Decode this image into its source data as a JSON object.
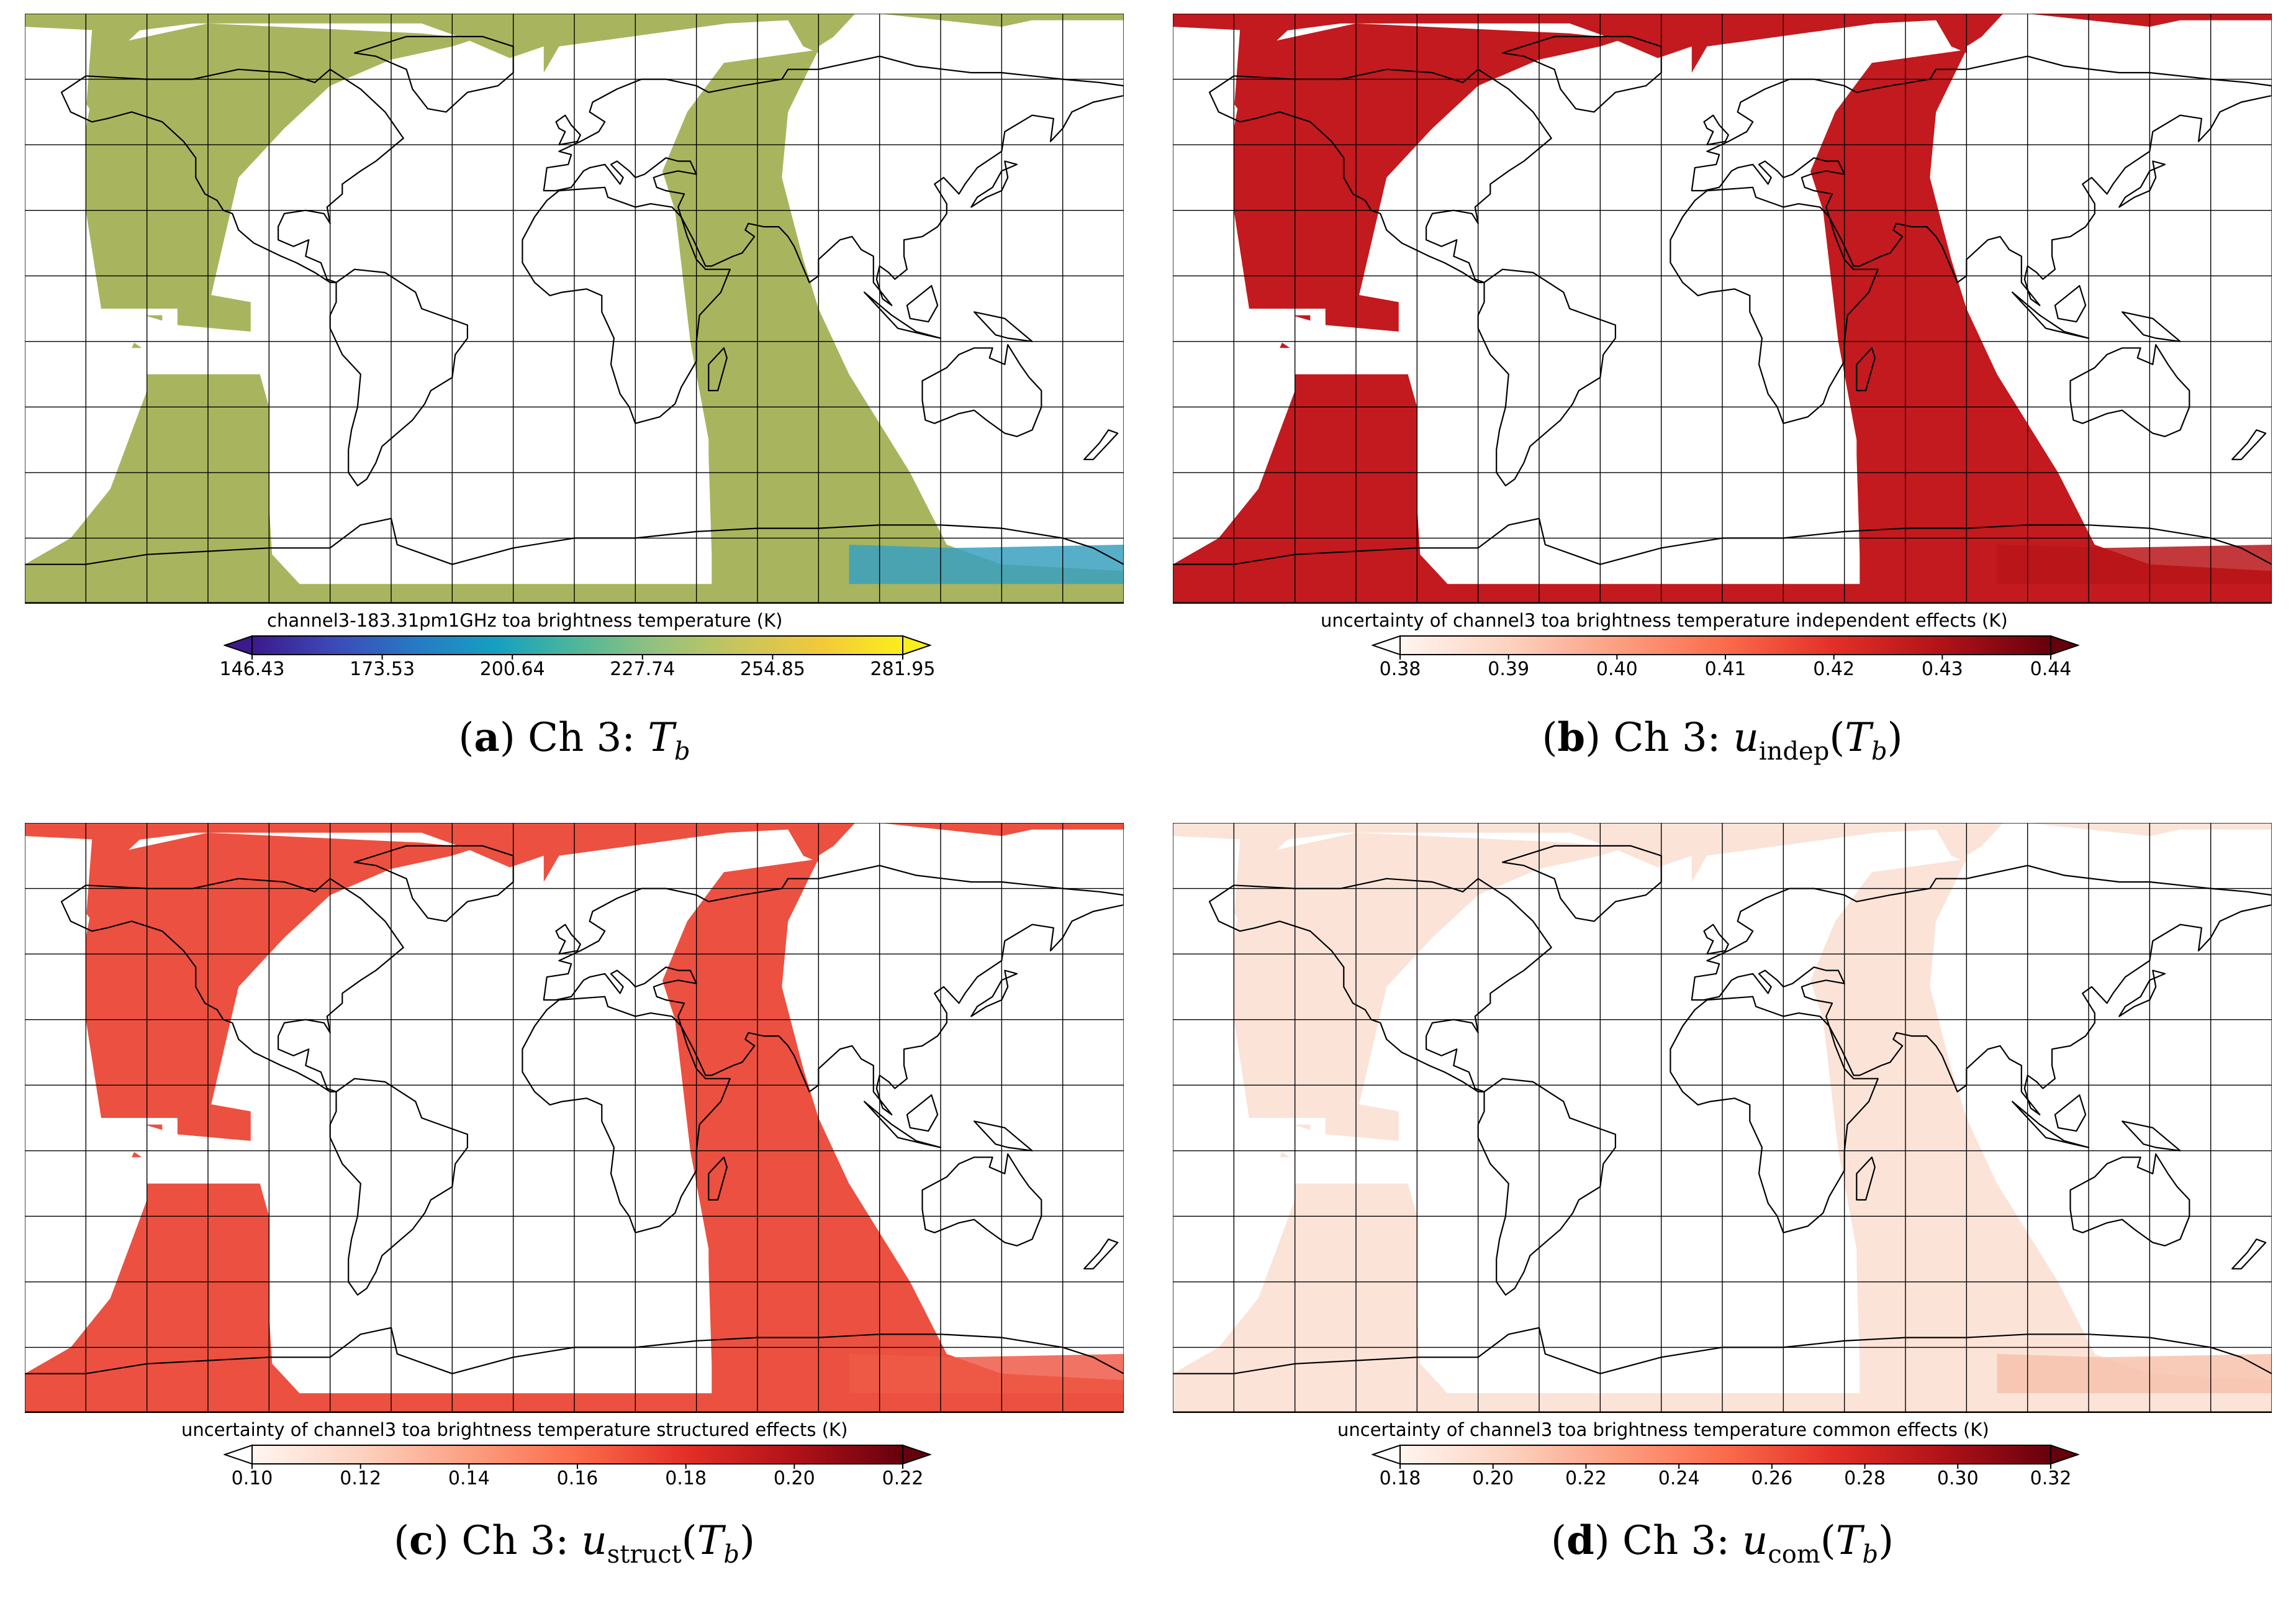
{
  "panels": [
    {
      "id": "a",
      "colorbar": {
        "title": "channel3-183.31pm1GHz toa brightness temperature (K)",
        "ticks": [
          "146.43",
          "173.53",
          "200.64",
          "227.74",
          "254.85",
          "281.95"
        ],
        "colors": [
          "#3b1a8c",
          "#3d49b8",
          "#2779c4",
          "#15a0c0",
          "#4fb79a",
          "#96c27d",
          "#c9c55c",
          "#f2c93a",
          "#fcee1c"
        ],
        "under_color": "#3b1a8c",
        "over_color": "#fcee1c"
      },
      "swath_fill": "#a8b55e",
      "south_fill": "#3aa0c0",
      "caption": {
        "letter": "a",
        "prefix": "Ch 3: ",
        "var": "T",
        "sub": "b",
        "func": ""
      }
    },
    {
      "id": "b",
      "colorbar": {
        "title": "uncertainty of channel3 toa brightness temperature independent effects (K)",
        "ticks": [
          "0.38",
          "0.39",
          "0.40",
          "0.41",
          "0.42",
          "0.43",
          "0.44"
        ],
        "colors": [
          "#fff5f0",
          "#fdd2bf",
          "#fc9f81",
          "#fb6b4b",
          "#e32f27",
          "#b11218",
          "#67000d"
        ],
        "under_color": "#ffffff",
        "over_color": "#67000d"
      },
      "swath_fill": "#c21a1e",
      "south_fill": "#b81519",
      "caption": {
        "letter": "b",
        "prefix": "Ch 3: ",
        "var": "u",
        "sub": "indep",
        "func": "T_b"
      }
    },
    {
      "id": "c",
      "colorbar": {
        "title": "uncertainty of channel3 toa brightness temperature structured effects (K)",
        "ticks": [
          "0.10",
          "0.12",
          "0.14",
          "0.16",
          "0.18",
          "0.20",
          "0.22"
        ],
        "colors": [
          "#fff5f0",
          "#fdd2bf",
          "#fc9f81",
          "#fb6b4b",
          "#e32f27",
          "#b11218",
          "#67000d"
        ],
        "under_color": "#ffffff",
        "over_color": "#67000d"
      },
      "swath_fill": "#ec5040",
      "south_fill": "#ef5a48",
      "caption": {
        "letter": "c",
        "prefix": "Ch 3: ",
        "var": "u",
        "sub": "struct",
        "func": "T_b"
      }
    },
    {
      "id": "d",
      "colorbar": {
        "title": "uncertainty of channel3 toa brightness temperature common effects (K)",
        "ticks": [
          "0.18",
          "0.20",
          "0.22",
          "0.24",
          "0.26",
          "0.28",
          "0.30",
          "0.32"
        ],
        "colors": [
          "#fff5f0",
          "#fdd2bf",
          "#fc9f81",
          "#fb6b4b",
          "#e32f27",
          "#b11218",
          "#67000d"
        ],
        "under_color": "#ffffff",
        "over_color": "#67000d"
      },
      "swath_fill": "#fbe3d8",
      "south_fill": "#f7c2ad",
      "caption": {
        "letter": "d",
        "prefix": "Ch 3: ",
        "var": "u",
        "sub": "com",
        "func": "T_b"
      }
    }
  ]
}
